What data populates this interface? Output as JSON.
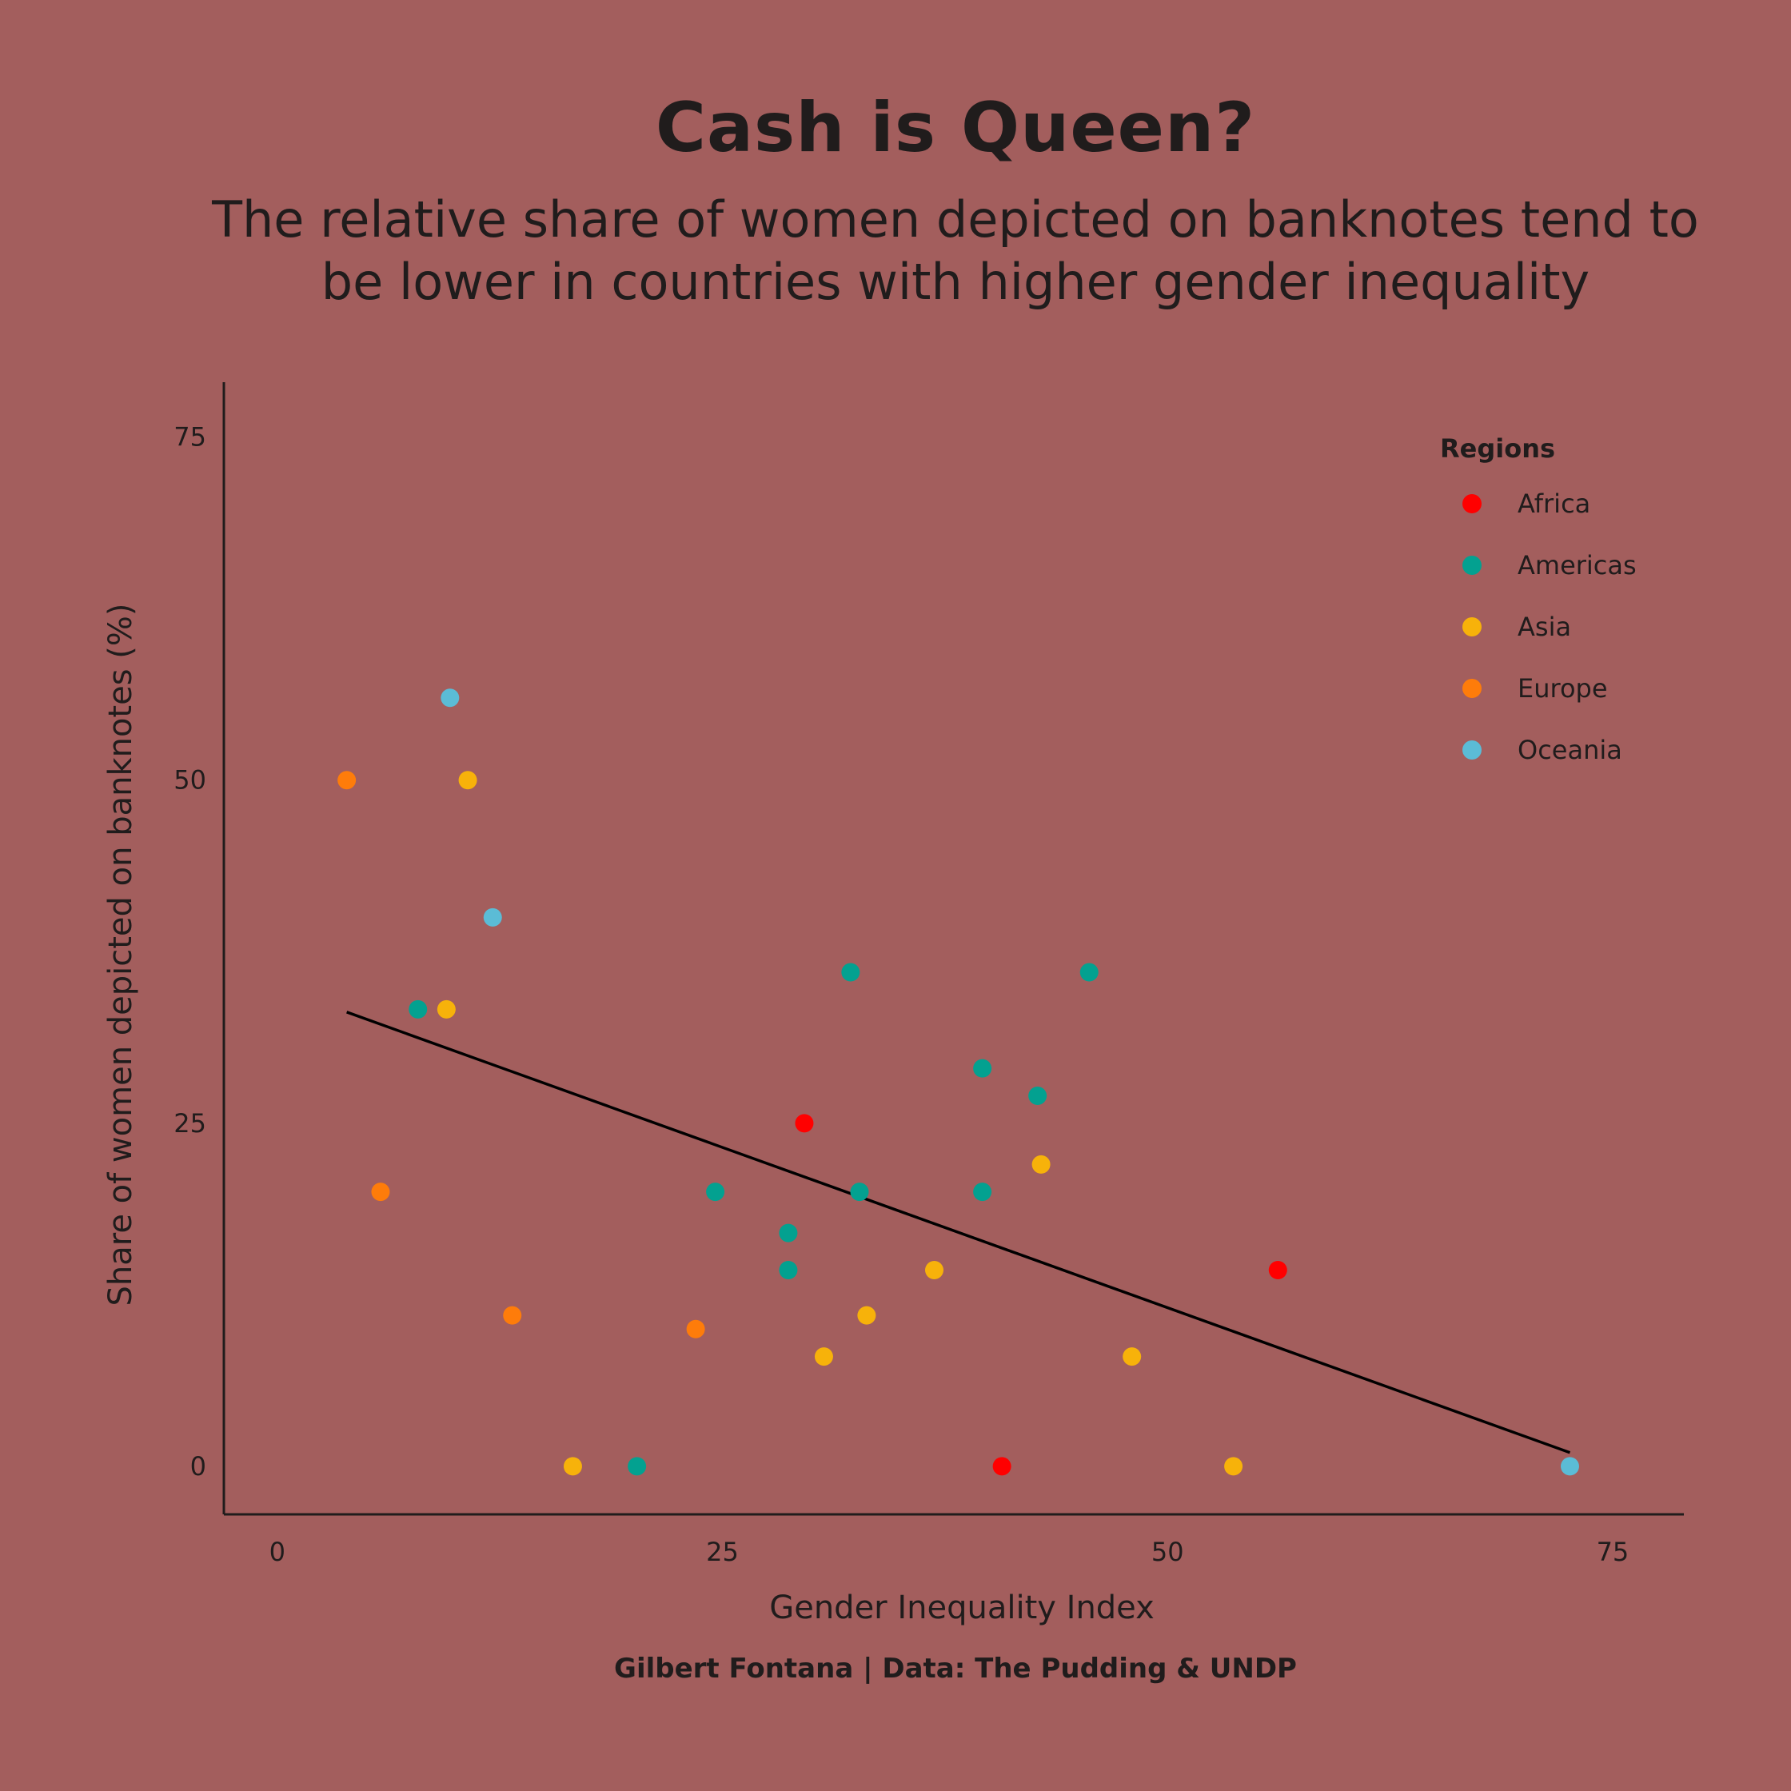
{
  "header": {
    "title": "Cash is Queen?",
    "subtitle": "The relative share of women depicted on banknotes tend to be lower in countries with higher gender inequality"
  },
  "caption": "Gilbert Fontana | Data: The Pudding & UNDP",
  "colors": {
    "background": "#a35e5d",
    "text": "#201c1c",
    "Africa": "#ff0000",
    "Americas": "#03a190",
    "Asia": "#f7b20a",
    "Europe": "#fe7c0a",
    "Oceania": "#5bbcd6"
  },
  "chart_data": {
    "type": "scatter",
    "title": "Cash is Queen?",
    "subtitle": "The relative share of women depicted on banknotes tend to be lower in countries with higher gender inequality",
    "xlabel": "Gender Inequality Index",
    "ylabel": "Share of women depicted on banknotes (%)",
    "xlim": [
      -3,
      79
    ],
    "ylim": [
      -3.5,
      79
    ],
    "x_ticks": [
      0,
      25,
      50,
      75
    ],
    "y_ticks": [
      0,
      25,
      50,
      75
    ],
    "x_tick_labels": [
      "0",
      "25",
      "50",
      "75"
    ],
    "y_tick_labels": [
      "0",
      "25",
      "50",
      "75"
    ],
    "grid": false,
    "legend": {
      "title": "Regions",
      "position": "top-right",
      "entries": [
        "Africa",
        "Americas",
        "Asia",
        "Europe",
        "Oceania"
      ]
    },
    "trend_line": {
      "x": [
        3.9,
        72.6
      ],
      "y": [
        33.1,
        1.0
      ]
    },
    "series": [
      {
        "name": "Africa",
        "color": "#ff0000",
        "x": [
          29.6,
          40.7,
          56.2
        ],
        "y": [
          25.0,
          0.0,
          14.3
        ]
      },
      {
        "name": "Americas",
        "color": "#03a190",
        "x": [
          7.9,
          20.2,
          24.6,
          28.7,
          28.7,
          32.2,
          32.7,
          39.6,
          39.6,
          42.7,
          45.6
        ],
        "y": [
          33.3,
          0.0,
          20.0,
          17.0,
          14.3,
          36.0,
          20.0,
          29.0,
          20.0,
          27.0,
          36.0
        ]
      },
      {
        "name": "Asia",
        "color": "#f7b20a",
        "x": [
          9.5,
          10.7,
          16.6,
          30.7,
          33.1,
          36.9,
          42.9,
          48.0,
          53.7
        ],
        "y": [
          33.3,
          50.0,
          0.0,
          8.0,
          11.0,
          14.3,
          22.0,
          8.0,
          0.0
        ]
      },
      {
        "name": "Europe",
        "color": "#fe7c0a",
        "x": [
          3.9,
          5.8,
          13.2,
          23.5
        ],
        "y": [
          50.0,
          20.0,
          11.0,
          10.0
        ]
      },
      {
        "name": "Oceania",
        "color": "#5bbcd6",
        "x": [
          9.7,
          12.1,
          72.6
        ],
        "y": [
          56.0,
          40.0,
          0.0
        ]
      }
    ]
  }
}
